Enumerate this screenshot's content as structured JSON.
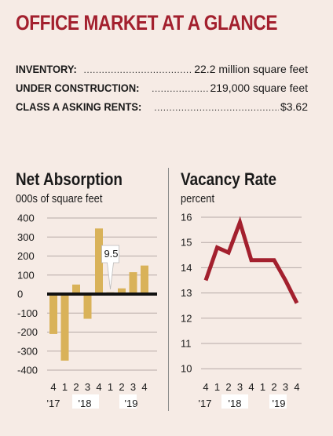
{
  "title": "OFFICE MARKET AT A GLANCE",
  "stats": [
    {
      "label": "INVENTORY:",
      "value": "22.2 million square feet"
    },
    {
      "label": "UNDER CONSTRUCTION:",
      "value": "219,000 square feet"
    },
    {
      "label": "CLASS A ASKING RENTS:",
      "value": "$3.62"
    }
  ],
  "chart_data": [
    {
      "type": "bar",
      "title": "Net Absorption",
      "subtitle": "000s of square feet",
      "quarters": [
        "4",
        "1",
        "2",
        "3",
        "4",
        "1",
        "2",
        "3",
        "4"
      ],
      "years": [
        "'17",
        "'18",
        "'19"
      ],
      "values": [
        -210,
        -350,
        50,
        -130,
        345,
        9.5,
        30,
        115,
        150
      ],
      "callout": "9.5",
      "yticks": [
        400,
        300,
        200,
        100,
        0,
        -100,
        -200,
        -300,
        -400
      ],
      "ylim": [
        -400,
        400
      ],
      "colors": {
        "bar": "#d9b259",
        "zero_line": "#111111"
      }
    },
    {
      "type": "line",
      "title": "Vacancy Rate",
      "subtitle": "percent",
      "quarters": [
        "4",
        "1",
        "2",
        "3",
        "4",
        "1",
        "2",
        "3",
        "4"
      ],
      "years": [
        "'17",
        "'18",
        "'19"
      ],
      "values": [
        13.5,
        14.8,
        14.6,
        15.8,
        14.3,
        14.3,
        14.3,
        13.5,
        12.6
      ],
      "yticks": [
        16,
        15,
        14,
        13,
        12,
        11,
        10
      ],
      "ylim": [
        10,
        16
      ],
      "colors": {
        "line": "#a3202e"
      }
    }
  ]
}
